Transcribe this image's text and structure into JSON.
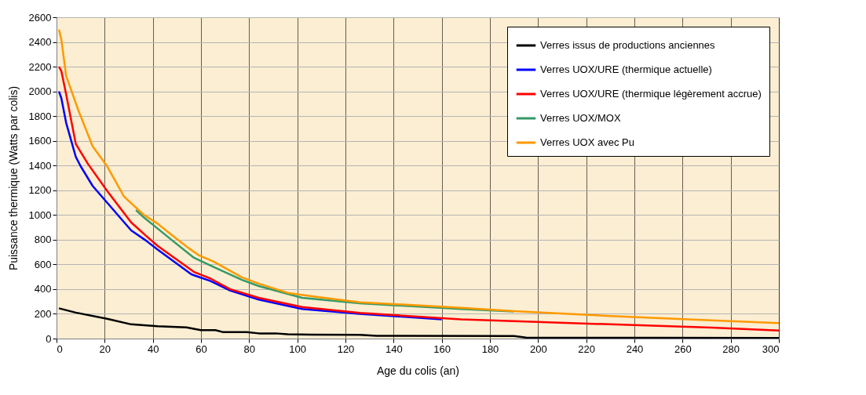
{
  "chart_data": {
    "type": "line",
    "xlabel": "Age du colis (an)",
    "ylabel": "Puissance thermique (Watts par colis)",
    "xlim": [
      0,
      300
    ],
    "ylim": [
      0,
      2600
    ],
    "xticks": [
      0,
      20,
      40,
      60,
      80,
      100,
      120,
      140,
      160,
      180,
      200,
      220,
      240,
      260,
      280,
      300
    ],
    "yticks": [
      0,
      200,
      400,
      600,
      800,
      1000,
      1200,
      1400,
      1600,
      1800,
      2000,
      2200,
      2400,
      2600
    ],
    "grid": true,
    "legend": "top right",
    "marker": "none",
    "line_style": "solid",
    "series": [
      {
        "name": "Verres issus de productions anciennes",
        "color": "#000000",
        "x": [
          1,
          8,
          21,
          31,
          42,
          54,
          60,
          66,
          69,
          79,
          84,
          91,
          96,
          106,
          126,
          133,
          190,
          195,
          250,
          300
        ],
        "values": [
          245,
          210,
          160,
          115,
          100,
          90,
          68,
          68,
          53,
          53,
          42,
          42,
          35,
          32,
          30,
          22,
          20,
          8,
          6,
          5
        ]
      },
      {
        "name": "Verres UOX/URE (thermique actuelle)",
        "color": "#0000ff",
        "x": [
          1,
          2,
          4,
          8,
          10,
          15,
          21,
          31,
          37,
          42,
          56,
          64,
          72,
          84,
          102,
          126,
          160
        ],
        "values": [
          2000,
          1945,
          1745,
          1470,
          1395,
          1235,
          1100,
          875,
          795,
          720,
          520,
          465,
          390,
          315,
          240,
          200,
          155
        ]
      },
      {
        "name": "Verres UOX/URE (thermique légèrement accrue)",
        "color": "#ff0000",
        "x": [
          1,
          2,
          4,
          8,
          13,
          21,
          31,
          37,
          42,
          57,
          64,
          72,
          84,
          102,
          126,
          168,
          190,
          230,
          272,
          300
        ],
        "values": [
          2200,
          2165,
          1975,
          1575,
          1415,
          1195,
          940,
          835,
          750,
          540,
          485,
          400,
          330,
          255,
          208,
          155,
          141,
          115,
          88,
          65
        ]
      },
      {
        "name": "Verres UOX/MOX",
        "color": "#339966",
        "x": [
          33,
          36,
          42,
          48,
          57,
          64,
          77,
          84,
          102,
          126,
          168,
          190
        ],
        "values": [
          1040,
          985,
          890,
          795,
          655,
          590,
          475,
          425,
          330,
          285,
          240,
          218
        ]
      },
      {
        "name": "Verres UOX avec Pu",
        "color": "#ff9900",
        "x": [
          1,
          2,
          4,
          9,
          15,
          21,
          28,
          36,
          42,
          48,
          55,
          59,
          65,
          77,
          84,
          96,
          106,
          126,
          168,
          190,
          230,
          272,
          300
        ],
        "values": [
          2500,
          2420,
          2125,
          1850,
          1555,
          1395,
          1150,
          1005,
          930,
          835,
          730,
          675,
          625,
          495,
          445,
          370,
          342,
          294,
          249,
          222,
          182,
          147,
          125
        ]
      }
    ]
  }
}
